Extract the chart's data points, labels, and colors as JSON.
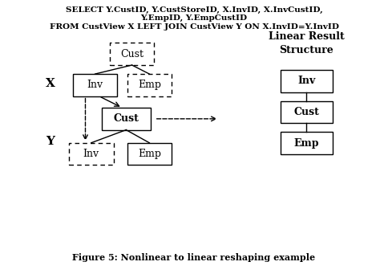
{
  "caption": "Figure 5: Nonlinear to linear reshaping example",
  "linear_title": "Linear Result\nStructure",
  "bg_color": "white",
  "text_color": "black",
  "sql_lines": [
    "SELECT Y.CustID, Y.CustStoreID, X.InvID, X.InvCustID,",
    "Y.EmpID, Y.EmpCustID",
    "FROM CustView X LEFT JOIN CustView Y ON X.InvID=Y.InvID"
  ]
}
